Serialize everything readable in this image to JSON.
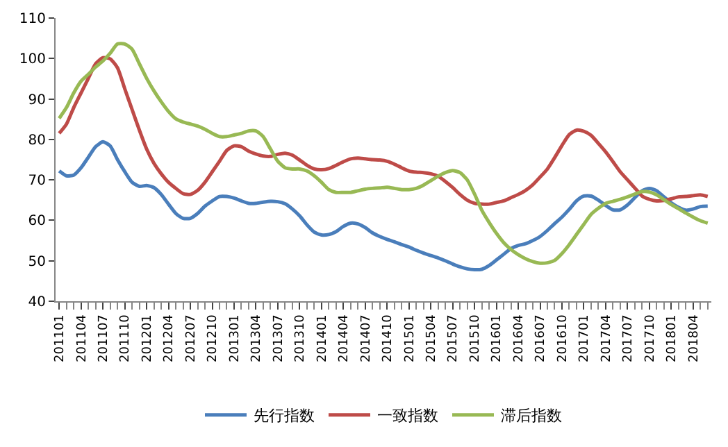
{
  "chart_data": {
    "type": "line",
    "categories": [
      "201101",
      null,
      null,
      "201104",
      null,
      null,
      "201107",
      null,
      null,
      "201110",
      null,
      null,
      "201201",
      null,
      null,
      "201204",
      null,
      null,
      "201207",
      null,
      null,
      "201210",
      null,
      null,
      "201301",
      null,
      null,
      "201304",
      null,
      null,
      "201307",
      null,
      null,
      "201310",
      null,
      null,
      "201401",
      null,
      null,
      "201404",
      null,
      null,
      "201407",
      null,
      null,
      "201410",
      null,
      null,
      "201501",
      null,
      null,
      "201504",
      null,
      null,
      "201507",
      null,
      null,
      "201510",
      null,
      null,
      "201601",
      null,
      null,
      "201604",
      null,
      null,
      "201607",
      null,
      null,
      "201610",
      null,
      null,
      "201701",
      null,
      null,
      "201704",
      null,
      null,
      "201707",
      null,
      null,
      "201710",
      null,
      null,
      "201801",
      null,
      null,
      "201804",
      null,
      null
    ],
    "series": [
      {
        "name": "先行指数",
        "color": "#4a7ebb",
        "values": [
          72.2,
          71,
          71.2,
          73,
          75.6,
          78.2,
          79.4,
          78.4,
          75,
          72,
          69.4,
          68.4,
          68.6,
          68.1,
          66.4,
          64,
          61.7,
          60.5,
          60.5,
          61.7,
          63.5,
          64.8,
          65.9,
          65.9,
          65.5,
          64.8,
          64.2,
          64.2,
          64.5,
          64.7,
          64.6,
          64.1,
          62.8,
          61.1,
          58.9,
          57.1,
          56.4,
          56.5,
          57.2,
          58.5,
          59.3,
          59.1,
          58.2,
          56.9,
          56,
          55.3,
          54.7,
          54,
          53.4,
          52.6,
          51.9,
          51.3,
          50.7,
          50,
          49.2,
          48.5,
          48,
          47.8,
          47.9,
          48.8,
          50.2,
          51.6,
          53,
          53.8,
          54.2,
          55,
          56,
          57.5,
          59.2,
          60.8,
          62.7,
          64.8,
          66,
          66,
          65,
          63.7,
          62.6,
          62.6,
          63.8,
          65.6,
          67.3,
          67.9,
          67.3,
          65.8,
          64.3,
          63.2,
          62.5,
          62.8,
          63.4,
          63.5
        ]
      },
      {
        "name": "一致指数",
        "color": "#be4b48",
        "values": [
          81.5,
          83.8,
          87.9,
          91.5,
          95.1,
          98.7,
          100.2,
          99.9,
          97.7,
          92.5,
          87.4,
          82.3,
          77.6,
          74.1,
          71.5,
          69.4,
          67.9,
          66.6,
          66.4,
          67.4,
          69.4,
          72,
          74.6,
          77.3,
          78.4,
          78.2,
          77.1,
          76.4,
          75.9,
          75.8,
          76.3,
          76.6,
          76.1,
          74.9,
          73.6,
          72.7,
          72.5,
          72.8,
          73.6,
          74.5,
          75.2,
          75.4,
          75.2,
          75.0,
          74.9,
          74.6,
          73.9,
          73,
          72.2,
          71.9,
          71.8,
          71.5,
          70.9,
          69.6,
          68.1,
          66.4,
          65,
          64.2,
          64,
          64,
          64.4,
          64.8,
          65.6,
          66.4,
          67.4,
          68.8,
          70.7,
          72.7,
          75.5,
          78.5,
          81.2,
          82.3,
          82,
          81,
          79,
          76.9,
          74.5,
          72,
          70,
          68,
          66,
          65.2,
          64.8,
          64.9,
          65.3,
          65.8,
          65.9,
          66.1,
          66.3,
          65.9
        ]
      },
      {
        "name": "滞后指数",
        "color": "#98b954",
        "values": [
          85.2,
          87.9,
          91.5,
          94.4,
          96.1,
          97.9,
          99.4,
          101.3,
          103.6,
          103.6,
          102.3,
          98.7,
          95.1,
          92,
          89.3,
          86.9,
          85.1,
          84.3,
          83.8,
          83.3,
          82.5,
          81.5,
          80.7,
          80.7,
          81.1,
          81.5,
          82.1,
          82.1,
          80.7,
          77.6,
          74.6,
          73,
          72.7,
          72.7,
          72.2,
          71,
          69.4,
          67.6,
          66.9,
          66.9,
          66.9,
          67.3,
          67.7,
          67.9,
          68,
          68.2,
          67.9,
          67.6,
          67.6,
          67.9,
          68.7,
          69.8,
          70.9,
          71.8,
          72.3,
          71.8,
          70,
          66.5,
          62.5,
          59.5,
          56.8,
          54.5,
          52.8,
          51.5,
          50.5,
          49.8,
          49.4,
          49.5,
          50.1,
          51.8,
          54,
          56.5,
          59,
          61.5,
          63,
          64.2,
          64.7,
          65.2,
          65.8,
          66.5,
          67.1,
          67,
          66.3,
          65.1,
          63.9,
          62.9,
          61.8,
          60.8,
          59.9,
          59.3
        ]
      }
    ],
    "ylim": [
      40,
      110
    ],
    "yticks": [
      40,
      50,
      60,
      70,
      80,
      90,
      100,
      110
    ],
    "legend": "bottom",
    "marker": "none",
    "line_style": "solid"
  }
}
